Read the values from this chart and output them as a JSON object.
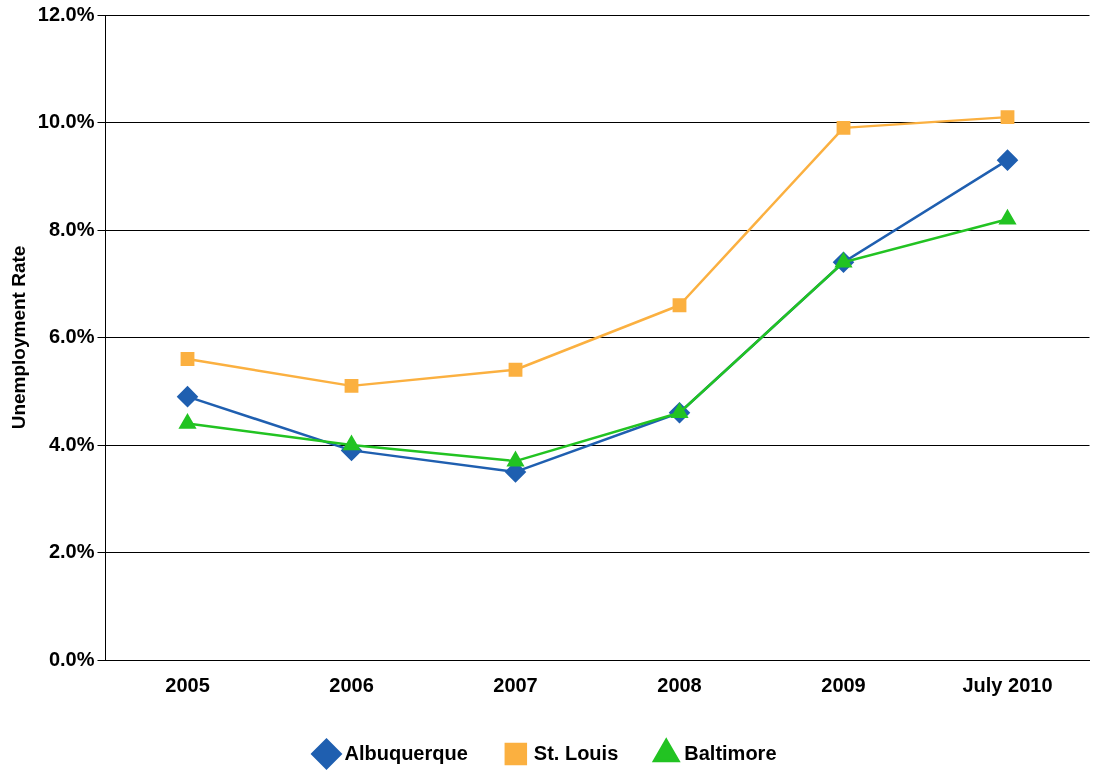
{
  "chart_data": {
    "type": "line",
    "ylabel": "Unemployment Rate",
    "categories": [
      "2005",
      "2006",
      "2007",
      "2008",
      "2009",
      "July 2010"
    ],
    "series": [
      {
        "name": "Albuquerque",
        "color": "#1f5fb0",
        "marker": "diamond",
        "values": [
          4.9,
          3.9,
          3.5,
          4.6,
          7.4,
          9.3
        ]
      },
      {
        "name": "St. Louis",
        "color": "#fbb040",
        "marker": "square",
        "values": [
          5.6,
          5.1,
          5.4,
          6.6,
          9.9,
          10.1
        ]
      },
      {
        "name": "Baltimore",
        "color": "#22c322",
        "marker": "triangle",
        "values": [
          4.4,
          4.0,
          3.7,
          4.6,
          7.4,
          8.2
        ]
      }
    ],
    "ylim": [
      0,
      12
    ],
    "yticks": [
      {
        "value": 0,
        "label": "0.0%"
      },
      {
        "value": 2,
        "label": "2.0%"
      },
      {
        "value": 4,
        "label": "4.0%"
      },
      {
        "value": 6,
        "label": "6.0%"
      },
      {
        "value": 8,
        "label": "8.0%"
      },
      {
        "value": 10,
        "label": "10.0%"
      },
      {
        "value": 12,
        "label": "12.0%"
      }
    ],
    "grid": "y",
    "legend": "bottom"
  }
}
